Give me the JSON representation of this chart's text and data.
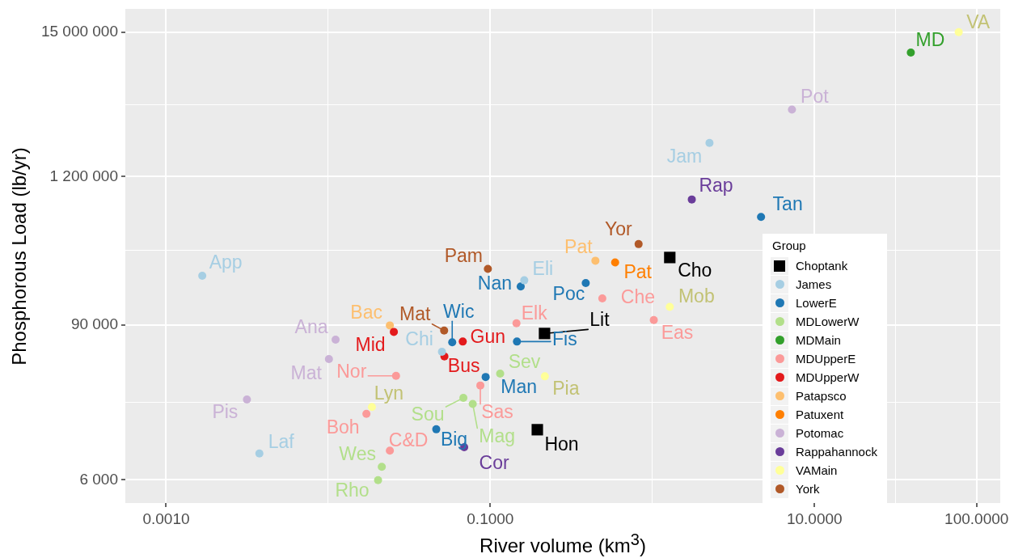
{
  "chart_data": {
    "type": "scatter",
    "xlabel": "River volume (km$^{3}$)",
    "ylabel": "Phosphorous Load (lb/yr)",
    "legend_title": "Group",
    "log": "xy",
    "grid": true,
    "legend": "bottom right",
    "marker": "circle",
    "xlim": [
      0.00056,
      140
    ],
    "ylim": [
      4000,
      22500000
    ],
    "xticks": [
      {
        "value": 0.001,
        "label": "0.0010"
      },
      {
        "value": 0.01,
        "label": null
      },
      {
        "value": 0.1,
        "label": "0.1000"
      },
      {
        "value": 1,
        "label": null
      },
      {
        "value": 10,
        "label": "10.0000"
      },
      {
        "value": 31.6,
        "label": null
      },
      {
        "value": 100,
        "label": "100.0000"
      }
    ],
    "yticks": [
      {
        "value": 6000,
        "label": "6 000"
      },
      {
        "value": 23200,
        "label": null
      },
      {
        "value": 90000,
        "label": "90 000"
      },
      {
        "value": 329000,
        "label": null
      },
      {
        "value": 1200000,
        "label": "1 200 000"
      },
      {
        "value": 4240000,
        "label": null
      },
      {
        "value": 15000000,
        "label": "15 000 000"
      }
    ],
    "series": [
      {
        "name": "Choptank",
        "color": "#000000",
        "marker": "square",
        "x": [
          1.28,
          0.216,
          0.195
        ],
        "values": [
          292000,
          77400,
          14400
        ]
      },
      {
        "name": "James",
        "color": "#a6cee3",
        "x": [
          0.00167,
          0.00376,
          0.0503,
          0.162,
          2.25
        ],
        "values": [
          212000,
          9510,
          56200,
          196000,
          2160000
        ]
      },
      {
        "name": "LowerE",
        "color": "#1f78b4",
        "x": [
          0.154,
          0.0582,
          0.146,
          0.0936,
          0.0464,
          0.388,
          4.68
        ],
        "values": [
          176000,
          66300,
          67200,
          36200,
          14500,
          187000,
          594000
        ]
      },
      {
        "name": "MDLowerW",
        "color": "#b2df8a",
        "x": [
          0.115,
          0.0682,
          0.0779,
          0.0214,
          0.0203
        ],
        "values": [
          38400,
          25100,
          22600,
          7520,
          5970
        ]
      },
      {
        "name": "MDMain",
        "color": "#33a02c",
        "x": [
          39.3
        ],
        "values": [
          10500000
        ]
      },
      {
        "name": "MDUpperE",
        "color": "#fb9a99",
        "x": [
          0.0262,
          0.0172,
          0.024,
          0.145,
          0.0868,
          0.491,
          1.02
        ],
        "values": [
          36900,
          19000,
          9980,
          92500,
          31200,
          143000,
          97800
        ]
      },
      {
        "name": "MDUpperW",
        "color": "#e31a1c",
        "x": [
          0.0254,
          0.0676,
          0.0521
        ],
        "values": [
          79600,
          67200,
          51800
        ]
      },
      {
        "name": "Patapsco",
        "color": "#fdbf6f",
        "x": [
          0.024,
          0.445
        ],
        "values": [
          89100,
          276000
        ]
      },
      {
        "name": "Patuxent",
        "color": "#ff7f00",
        "x": [
          0.589
        ],
        "values": [
          268000
        ]
      },
      {
        "name": "Potomac",
        "color": "#cab2d6",
        "x": [
          0.0111,
          0.0101,
          0.00315,
          7.26
        ],
        "values": [
          69400,
          49500,
          24400,
          3870000
        ]
      },
      {
        "name": "Rappahannock",
        "color": "#6a3d9a",
        "x": [
          1.75,
          0.069
        ],
        "values": [
          805000,
          10600
        ]
      },
      {
        "name": "VAMain",
        "color": "#ffff99",
        "x": [
          0.0186,
          0.217,
          1.28,
          77.6
        ],
        "values": [
          21400,
          36600,
          123000,
          15000000
        ]
      },
      {
        "name": "York",
        "color": "#b15928",
        "x": [
          0.0966,
          0.0519,
          0.822
        ],
        "values": [
          239000,
          81400,
          369000
        ]
      }
    ],
    "annotations": [
      {
        "text": "Cho",
        "x": 1.28,
        "y": 292000
      },
      {
        "text": "Lit",
        "x": 0.216,
        "y": 77400
      },
      {
        "text": "Hon",
        "x": 0.195,
        "y": 14400
      },
      {
        "text": "App",
        "x": 0.00167,
        "y": 212000
      },
      {
        "text": "Laf",
        "x": 0.00376,
        "y": 9510
      },
      {
        "text": "Chi",
        "x": 0.0503,
        "y": 56200
      },
      {
        "text": "Eli",
        "x": 0.162,
        "y": 196000
      },
      {
        "text": "Jam",
        "x": 2.25,
        "y": 2160000
      },
      {
        "text": "Nan",
        "x": 0.154,
        "y": 176000
      },
      {
        "text": "Wic",
        "x": 0.0582,
        "y": 66300
      },
      {
        "text": "Fis",
        "x": 0.146,
        "y": 67200
      },
      {
        "text": "Man",
        "x": 0.0936,
        "y": 36200
      },
      {
        "text": "Big",
        "x": 0.0464,
        "y": 14500
      },
      {
        "text": "Poc",
        "x": 0.388,
        "y": 187000
      },
      {
        "text": "Tan",
        "x": 4.68,
        "y": 594000
      },
      {
        "text": "Sev",
        "x": 0.115,
        "y": 38400
      },
      {
        "text": "Sou",
        "x": 0.0682,
        "y": 25100
      },
      {
        "text": "Mag",
        "x": 0.0779,
        "y": 22600
      },
      {
        "text": "Wes",
        "x": 0.0214,
        "y": 7520
      },
      {
        "text": "Rho",
        "x": 0.0203,
        "y": 5970
      },
      {
        "text": "MD",
        "x": 39.3,
        "y": 10500000
      },
      {
        "text": "Nor",
        "x": 0.0262,
        "y": 36900
      },
      {
        "text": "Boh",
        "x": 0.0172,
        "y": 19000
      },
      {
        "text": "C&D",
        "x": 0.024,
        "y": 9980
      },
      {
        "text": "Elk",
        "x": 0.145,
        "y": 92500
      },
      {
        "text": "Sas",
        "x": 0.0868,
        "y": 31200
      },
      {
        "text": "Che",
        "x": 0.491,
        "y": 143000
      },
      {
        "text": "Eas",
        "x": 1.02,
        "y": 97800
      },
      {
        "text": "Mid",
        "x": 0.0254,
        "y": 79600
      },
      {
        "text": "Gun",
        "x": 0.0676,
        "y": 67200
      },
      {
        "text": "Bus",
        "x": 0.0521,
        "y": 51800
      },
      {
        "text": "Bac",
        "x": 0.024,
        "y": 89100
      },
      {
        "text": "Pat",
        "x": 0.445,
        "y": 276000
      },
      {
        "text": "Pat",
        "x": 0.589,
        "y": 268000
      },
      {
        "text": "Ana",
        "x": 0.0111,
        "y": 69400
      },
      {
        "text": "Mat",
        "x": 0.0101,
        "y": 49500
      },
      {
        "text": "Pis",
        "x": 0.00315,
        "y": 24400
      },
      {
        "text": "Pot",
        "x": 7.26,
        "y": 3870000
      },
      {
        "text": "Rap",
        "x": 1.75,
        "y": 805000
      },
      {
        "text": "Cor",
        "x": 0.069,
        "y": 10600
      },
      {
        "text": "Lyn",
        "x": 0.0186,
        "y": 21400
      },
      {
        "text": "Pia",
        "x": 0.217,
        "y": 36600
      },
      {
        "text": "Mob",
        "x": 1.28,
        "y": 123000
      },
      {
        "text": "VA",
        "x": 77.6,
        "y": 15000000
      },
      {
        "text": "Pam",
        "x": 0.0966,
        "y": 239000
      },
      {
        "text": "Mat",
        "x": 0.0519,
        "y": 81400
      },
      {
        "text": "Yor",
        "x": 0.822,
        "y": 369000
      }
    ]
  }
}
